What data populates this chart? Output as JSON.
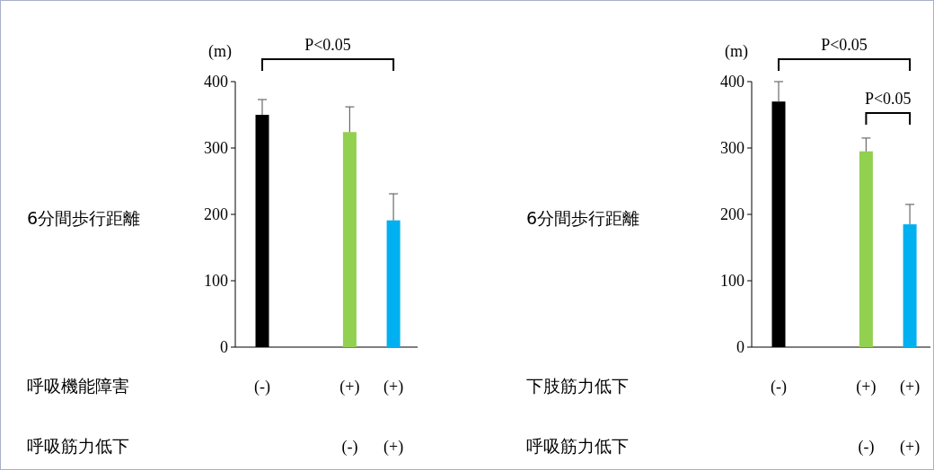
{
  "chart_data": [
    {
      "type": "bar",
      "ylabel": "6分間歩行距離",
      "categories": [
        "(-)",
        null,
        "(+)",
        "(+)"
      ],
      "values": [
        350,
        null,
        324,
        191
      ],
      "colors": [
        "#000000",
        null,
        "#92d050",
        "#00b0f0"
      ],
      "errors": [
        23,
        null,
        38,
        40
      ],
      "ylim": [
        0,
        400
      ],
      "yticks": [
        0,
        100,
        200,
        300,
        400
      ],
      "annotations": [
        "(m)",
        "P<0.05",
        "呼吸機能障害",
        "呼吸筋力低下",
        "(-)",
        "(+)"
      ]
    },
    {
      "type": "bar",
      "ylabel": "6分間歩行距離",
      "categories": [
        "(-)",
        null,
        "(+)",
        "(+)"
      ],
      "values": [
        370,
        null,
        295,
        185
      ],
      "colors": [
        "#000000",
        null,
        "#92d050",
        "#00b0f0"
      ],
      "errors": [
        30,
        null,
        20,
        30
      ],
      "ylim": [
        0,
        400
      ],
      "yticks": [
        0,
        100,
        200,
        300,
        400
      ],
      "annotations": [
        "(m)",
        "P<0.05",
        "P<0.05",
        "下肢筋力低下",
        "呼吸筋力低下",
        "(-)",
        "(+)"
      ]
    }
  ]
}
